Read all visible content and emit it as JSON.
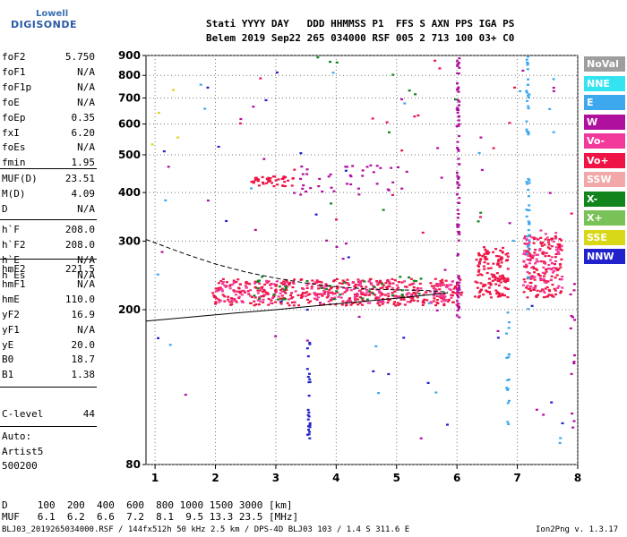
{
  "logo": {
    "line1": "Lowell",
    "line2": "DIGISONDE"
  },
  "header": {
    "labels": "Stati YYYY DAY   DDD HHMMSS P1  FFS S AXN PPS IGA PS",
    "values": "Belem 2019 Sep22 265 034000 RSF 005 2 713 100 03+ C0"
  },
  "params": {
    "group1": [
      {
        "label": "foF2",
        "value": "5.750"
      },
      {
        "label": "foF1",
        "value": "N/A"
      },
      {
        "label": "foF1p",
        "value": "N/A"
      },
      {
        "label": "foE",
        "value": "N/A"
      },
      {
        "label": "foEp",
        "value": "0.35"
      },
      {
        "label": "fxI",
        "value": "6.20"
      },
      {
        "label": "foEs",
        "value": "N/A"
      },
      {
        "label": "fmin",
        "value": "1.95"
      }
    ],
    "group2": [
      {
        "label": "MUF(D)",
        "value": "23.51"
      },
      {
        "label": "M(D)",
        "value": "4.09"
      },
      {
        "label": "D",
        "value": "N/A"
      }
    ],
    "group3": [
      {
        "label": "h`F",
        "value": "208.0"
      },
      {
        "label": "h`F2",
        "value": "208.0"
      },
      {
        "label": "h`E",
        "value": "N/A"
      },
      {
        "label": "h`Es",
        "value": "N/A"
      }
    ],
    "group4": [
      {
        "label": "hmF2",
        "value": "221.5"
      },
      {
        "label": "hmF1",
        "value": "N/A"
      },
      {
        "label": "hmE",
        "value": "110.0"
      },
      {
        "label": "yF2",
        "value": "16.9"
      },
      {
        "label": "yF1",
        "value": "N/A"
      },
      {
        "label": "yE",
        "value": "20.0"
      },
      {
        "label": "B0",
        "value": "18.7"
      },
      {
        "label": "B1",
        "value": "1.38"
      }
    ],
    "clevel": {
      "label": "C-level",
      "value": "44"
    },
    "auto": [
      "Auto:",
      "Artist5",
      "500200"
    ]
  },
  "legend": [
    {
      "label": "NoVal",
      "color": "#9e9e9e"
    },
    {
      "label": "NNE",
      "color": "#33e3f0"
    },
    {
      "label": "E",
      "color": "#3ea8ee"
    },
    {
      "label": "W",
      "color": "#b0109e"
    },
    {
      "label": "Vo-",
      "color": "#f2389a"
    },
    {
      "label": "Vo+",
      "color": "#ee1445"
    },
    {
      "label": "SSW",
      "color": "#f2a8a8"
    },
    {
      "label": "X-",
      "color": "#11851c"
    },
    {
      "label": "X+",
      "color": "#78c257"
    },
    {
      "label": "SSE",
      "color": "#d8d818"
    },
    {
      "label": "NNW",
      "color": "#2222cc"
    }
  ],
  "footer": {
    "d_row": "D     100  200  400  600  800 1000 1500 3000 [km]",
    "muf_row": "MUF   6.1  6.2  6.6  7.2  8.1  9.5 13.3 23.5 [MHz]",
    "file_info": "BLJ03_2019265034000.RSF / 144fx512h 50 kHz 2.5 km / DPS-4D BLJ03 103 / 1.4 S 311.6 E",
    "version": "Ion2Png v. 1.3.17"
  },
  "chart_data": {
    "type": "scatter",
    "xlim": [
      0.85,
      8.0
    ],
    "ylim": [
      80,
      900
    ],
    "y_scale": "log",
    "x_ticks": [
      1,
      2,
      3,
      4,
      5,
      6,
      7,
      8
    ],
    "y_ticks": [
      80,
      200,
      300,
      400,
      500,
      600,
      700,
      800,
      900
    ],
    "grid": true,
    "legend_position": "right",
    "clusters": [
      {
        "name": "F2 trace",
        "x": [
          1.95,
          6.1
        ],
        "y": [
          205,
          240
        ],
        "color": "#ee1445",
        "density": 420
      },
      {
        "name": "F2 trace O",
        "x": [
          2.0,
          6.05
        ],
        "y": [
          208,
          238
        ],
        "color": "#f2389a",
        "density": 180
      },
      {
        "name": "F2 trace X",
        "x": [
          2.6,
          5.6
        ],
        "y": [
          212,
          245
        ],
        "color": "#11851c",
        "density": 40
      },
      {
        "name": "upper F2 blob 1",
        "x": [
          6.3,
          6.85
        ],
        "y": [
          215,
          290
        ],
        "color": "#ee1445",
        "density": 140
      },
      {
        "name": "upper F2 blob 2",
        "x": [
          7.1,
          7.75
        ],
        "y": [
          215,
          310
        ],
        "color": "#ee1445",
        "density": 150
      },
      {
        "name": "upper F2 blob 2 O",
        "x": [
          7.1,
          7.75
        ],
        "y": [
          220,
          320
        ],
        "color": "#f2389a",
        "density": 80
      },
      {
        "name": "second hop",
        "x": [
          2.6,
          3.3
        ],
        "y": [
          415,
          440
        ],
        "color": "#ee1445",
        "density": 45
      },
      {
        "name": "second hop b",
        "x": [
          3.3,
          5.2
        ],
        "y": [
          395,
          470
        ],
        "color": "#b0109e",
        "density": 40
      },
      {
        "name": "vertical 6.0",
        "x": [
          6.0,
          6.04
        ],
        "y": [
          190,
          900
        ],
        "color": "#b0109e",
        "density": 90
      },
      {
        "name": "vertical 7.2",
        "x": [
          7.15,
          7.2
        ],
        "y": [
          200,
          900
        ],
        "color": "#3ea8ee",
        "density": 50
      },
      {
        "name": "vertical 3.55",
        "x": [
          3.52,
          3.57
        ],
        "y": [
          90,
          175
        ],
        "color": "#2222cc",
        "density": 25
      },
      {
        "name": "vertical 6.85",
        "x": [
          6.82,
          6.87
        ],
        "y": [
          95,
          200
        ],
        "color": "#3ea8ee",
        "density": 18
      },
      {
        "name": "vertical 7.95",
        "x": [
          7.88,
          7.95
        ],
        "y": [
          90,
          240
        ],
        "color": "#b0109e",
        "density": 14
      },
      {
        "name": "scatter W",
        "x": [
          1.0,
          7.9
        ],
        "y": [
          90,
          900
        ],
        "color": "#b0109e",
        "density": 35
      },
      {
        "name": "scatter NNW",
        "x": [
          0.9,
          7.8
        ],
        "y": [
          90,
          900
        ],
        "color": "#2222cc",
        "density": 22
      },
      {
        "name": "scatter E",
        "x": [
          1.0,
          7.9
        ],
        "y": [
          90,
          900
        ],
        "color": "#3ea8ee",
        "density": 20
      },
      {
        "name": "scatter X",
        "x": [
          3.0,
          6.5
        ],
        "y": [
          300,
          900
        ],
        "color": "#11851c",
        "density": 12
      },
      {
        "name": "scatter SSE",
        "x": [
          0.9,
          1.6
        ],
        "y": [
          400,
          750
        ],
        "color": "#d8d818",
        "density": 4
      },
      {
        "name": "scatter Vo+",
        "x": [
          1.0,
          7.9
        ],
        "y": [
          300,
          900
        ],
        "color": "#ee1445",
        "density": 18
      }
    ],
    "lines": [
      {
        "name": "profile solid",
        "style": "solid",
        "x": [
          0.85,
          2.0,
          3.0,
          4.0,
          5.0,
          5.85
        ],
        "y": [
          187,
          194,
          200,
          207,
          214,
          221
        ]
      },
      {
        "name": "profile dashed",
        "style": "dashed",
        "x": [
          0.85,
          1.5,
          2.0,
          2.5,
          3.0,
          3.5,
          4.0,
          4.5,
          5.0,
          5.5,
          5.85
        ],
        "y": [
          303,
          278,
          262,
          250,
          241,
          234,
          229,
          226,
          225,
          224,
          222
        ]
      }
    ]
  }
}
